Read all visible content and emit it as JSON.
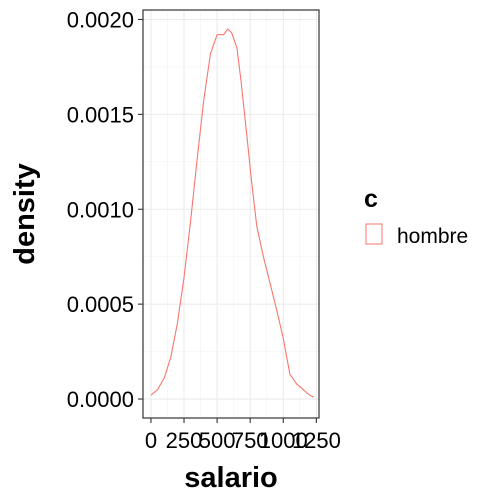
{
  "chart_data": {
    "type": "line",
    "xlabel": "salario",
    "ylabel": "density",
    "xlim": [
      -60,
      1270
    ],
    "ylim": [
      -0.0001,
      0.00205
    ],
    "x_ticks": [
      0,
      250,
      500,
      750,
      1000,
      1250
    ],
    "x_tick_labels": [
      "0",
      "250",
      "500",
      "750",
      "1000",
      "1250"
    ],
    "y_ticks": [
      0,
      0.0005,
      0.001,
      0.0015,
      0.002
    ],
    "y_tick_labels": [
      "0.0000",
      "0.0005",
      "0.0010",
      "0.0015",
      "0.0020"
    ],
    "grid": true,
    "legend": {
      "title": "c",
      "position": "right"
    },
    "series": [
      {
        "name": "hombre",
        "color": "#F8766D",
        "x": [
          0,
          50,
          100,
          150,
          200,
          250,
          300,
          350,
          400,
          450,
          500,
          550,
          580,
          610,
          650,
          680,
          720,
          760,
          800,
          850,
          900,
          950,
          1000,
          1050,
          1100,
          1150,
          1200,
          1230
        ],
        "y": [
          2e-05,
          5e-05,
          0.00011,
          0.00022,
          0.0004,
          0.00064,
          0.00094,
          0.00127,
          0.00158,
          0.00182,
          0.00192,
          0.00192,
          0.00195,
          0.00193,
          0.00185,
          0.00168,
          0.00142,
          0.00115,
          0.00091,
          0.00075,
          0.00061,
          0.00047,
          0.00032,
          0.00013,
          8e-05,
          5e-05,
          2e-05,
          1e-05
        ]
      }
    ]
  }
}
